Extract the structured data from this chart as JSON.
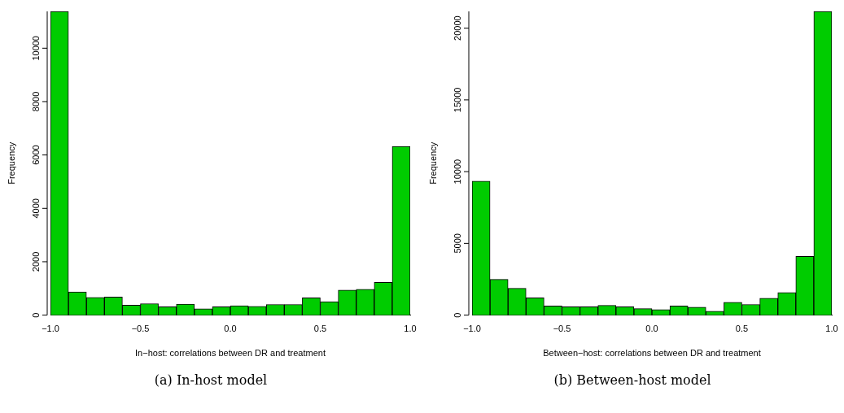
{
  "chart_data": [
    {
      "type": "histogram",
      "xlabel": "In−host: correlations between DR and treatment",
      "ylabel": "Frequency",
      "annotations": [
        "(a) In-host model"
      ],
      "color": "#00cc00",
      "bins": [
        -1,
        -0.9,
        -0.8,
        -0.7,
        -0.6,
        -0.5,
        -0.4,
        -0.3,
        -0.2,
        -0.1,
        0,
        0.1,
        0.2,
        0.3,
        0.4,
        0.5,
        0.6,
        0.7,
        0.8,
        0.9,
        1
      ],
      "values": [
        11380,
        870,
        660,
        680,
        370,
        430,
        310,
        410,
        240,
        310,
        350,
        330,
        400,
        400,
        650,
        500,
        940,
        970,
        1230,
        6320
      ],
      "xlim": [
        -1,
        1
      ],
      "xticks": [
        {
          "value": -1,
          "label": "−1.0"
        },
        {
          "value": -0.5,
          "label": "−0.5"
        },
        {
          "value": 0,
          "label": "0.0"
        },
        {
          "value": 0.5,
          "label": "0.5"
        },
        {
          "value": 1,
          "label": "1.0"
        }
      ],
      "ylim": [
        0,
        11380
      ],
      "yticks": [
        0,
        2000,
        4000,
        6000,
        8000,
        10000
      ],
      "grid": false,
      "legend": false
    },
    {
      "type": "histogram",
      "xlabel": "Between−host: correlations between DR and treatment",
      "ylabel": "Frequency",
      "annotations": [
        "(b) Between-host model"
      ],
      "color": "#00cc00",
      "bins": [
        -1,
        -0.9,
        -0.8,
        -0.7,
        -0.6,
        -0.5,
        -0.4,
        -0.3,
        -0.2,
        -0.1,
        0,
        0.1,
        0.2,
        0.3,
        0.4,
        0.5,
        0.6,
        0.7,
        0.8,
        0.9,
        1
      ],
      "values": [
        9340,
        2490,
        1870,
        1210,
        640,
        580,
        580,
        680,
        580,
        450,
        390,
        640,
        550,
        270,
        900,
        740,
        1170,
        1580,
        4090,
        21170
      ],
      "xlim": [
        -1,
        1
      ],
      "xticks": [
        {
          "value": -1,
          "label": "−1.0"
        },
        {
          "value": -0.5,
          "label": "−0.5"
        },
        {
          "value": 0,
          "label": "0.0"
        },
        {
          "value": 0.5,
          "label": "0.5"
        },
        {
          "value": 1,
          "label": "1.0"
        }
      ],
      "ylim": [
        0,
        21170
      ],
      "yticks": [
        0,
        5000,
        10000,
        15000,
        20000
      ],
      "grid": false,
      "legend": false
    }
  ]
}
